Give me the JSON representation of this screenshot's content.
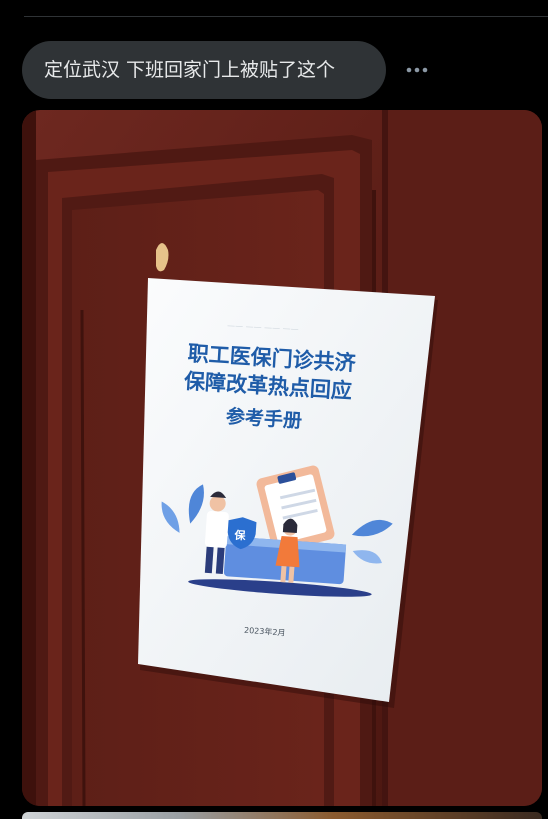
{
  "post": {
    "caption": "定位武汉 下班回家门上被贴了这个",
    "more_icon": "ellipsis-horizontal-icon"
  },
  "photo": {
    "subject": "door-with-pamphlet",
    "pamphlet": {
      "title_line1": "职工医保门诊共济",
      "title_line2": "保障改革热点回应",
      "subtitle": "参考手册",
      "date": "2023年2月",
      "badge_char": "保"
    },
    "colors": {
      "door": "#5a1d16",
      "door_light": "#7a2e25",
      "pamphlet_title": "#1f5ca8",
      "pamphlet_bg": "#f3f6f8"
    }
  }
}
